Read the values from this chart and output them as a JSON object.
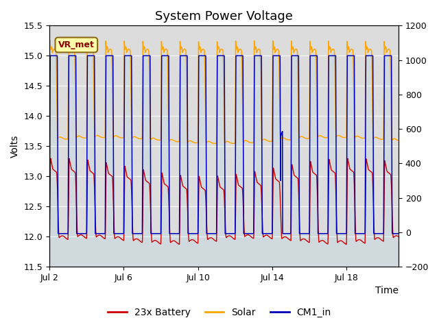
{
  "title": "System Power Voltage",
  "xlabel": "Time",
  "ylabel": "Volts",
  "xlim_start_day": 1.0,
  "xlim_end_day": 19.8,
  "ylim_left": [
    11.5,
    15.5
  ],
  "ylim_right": [
    -200,
    1200
  ],
  "yticks_left": [
    11.5,
    12.0,
    12.5,
    13.0,
    13.5,
    14.0,
    14.5,
    15.0,
    15.5
  ],
  "yticks_right": [
    -200,
    0,
    200,
    400,
    600,
    800,
    1000,
    1200
  ],
  "xtick_day_positions": [
    2,
    6,
    10,
    14,
    18
  ],
  "xtick_labels": [
    "Jul 2",
    "Jul 6",
    "Jul 10",
    "Jul 14",
    "Jul 18"
  ],
  "battery_color": "#CC0000",
  "solar_color": "#FFA500",
  "cm1_color": "#0000BB",
  "battery_label": "23x Battery",
  "solar_label": "Solar",
  "cm1_label": "CM1_in",
  "vr_met_label": "VR_met",
  "vr_met_bg": "#FFFFAA",
  "vr_met_border": "#8B6914",
  "vr_met_text_color": "#8B0000",
  "plot_bg": "#DCDCDC",
  "fig_bg": "#FFFFFF",
  "grid_color": "#FFFFFF",
  "title_fontsize": 13,
  "label_fontsize": 10,
  "tick_fontsize": 9,
  "legend_fontsize": 10
}
